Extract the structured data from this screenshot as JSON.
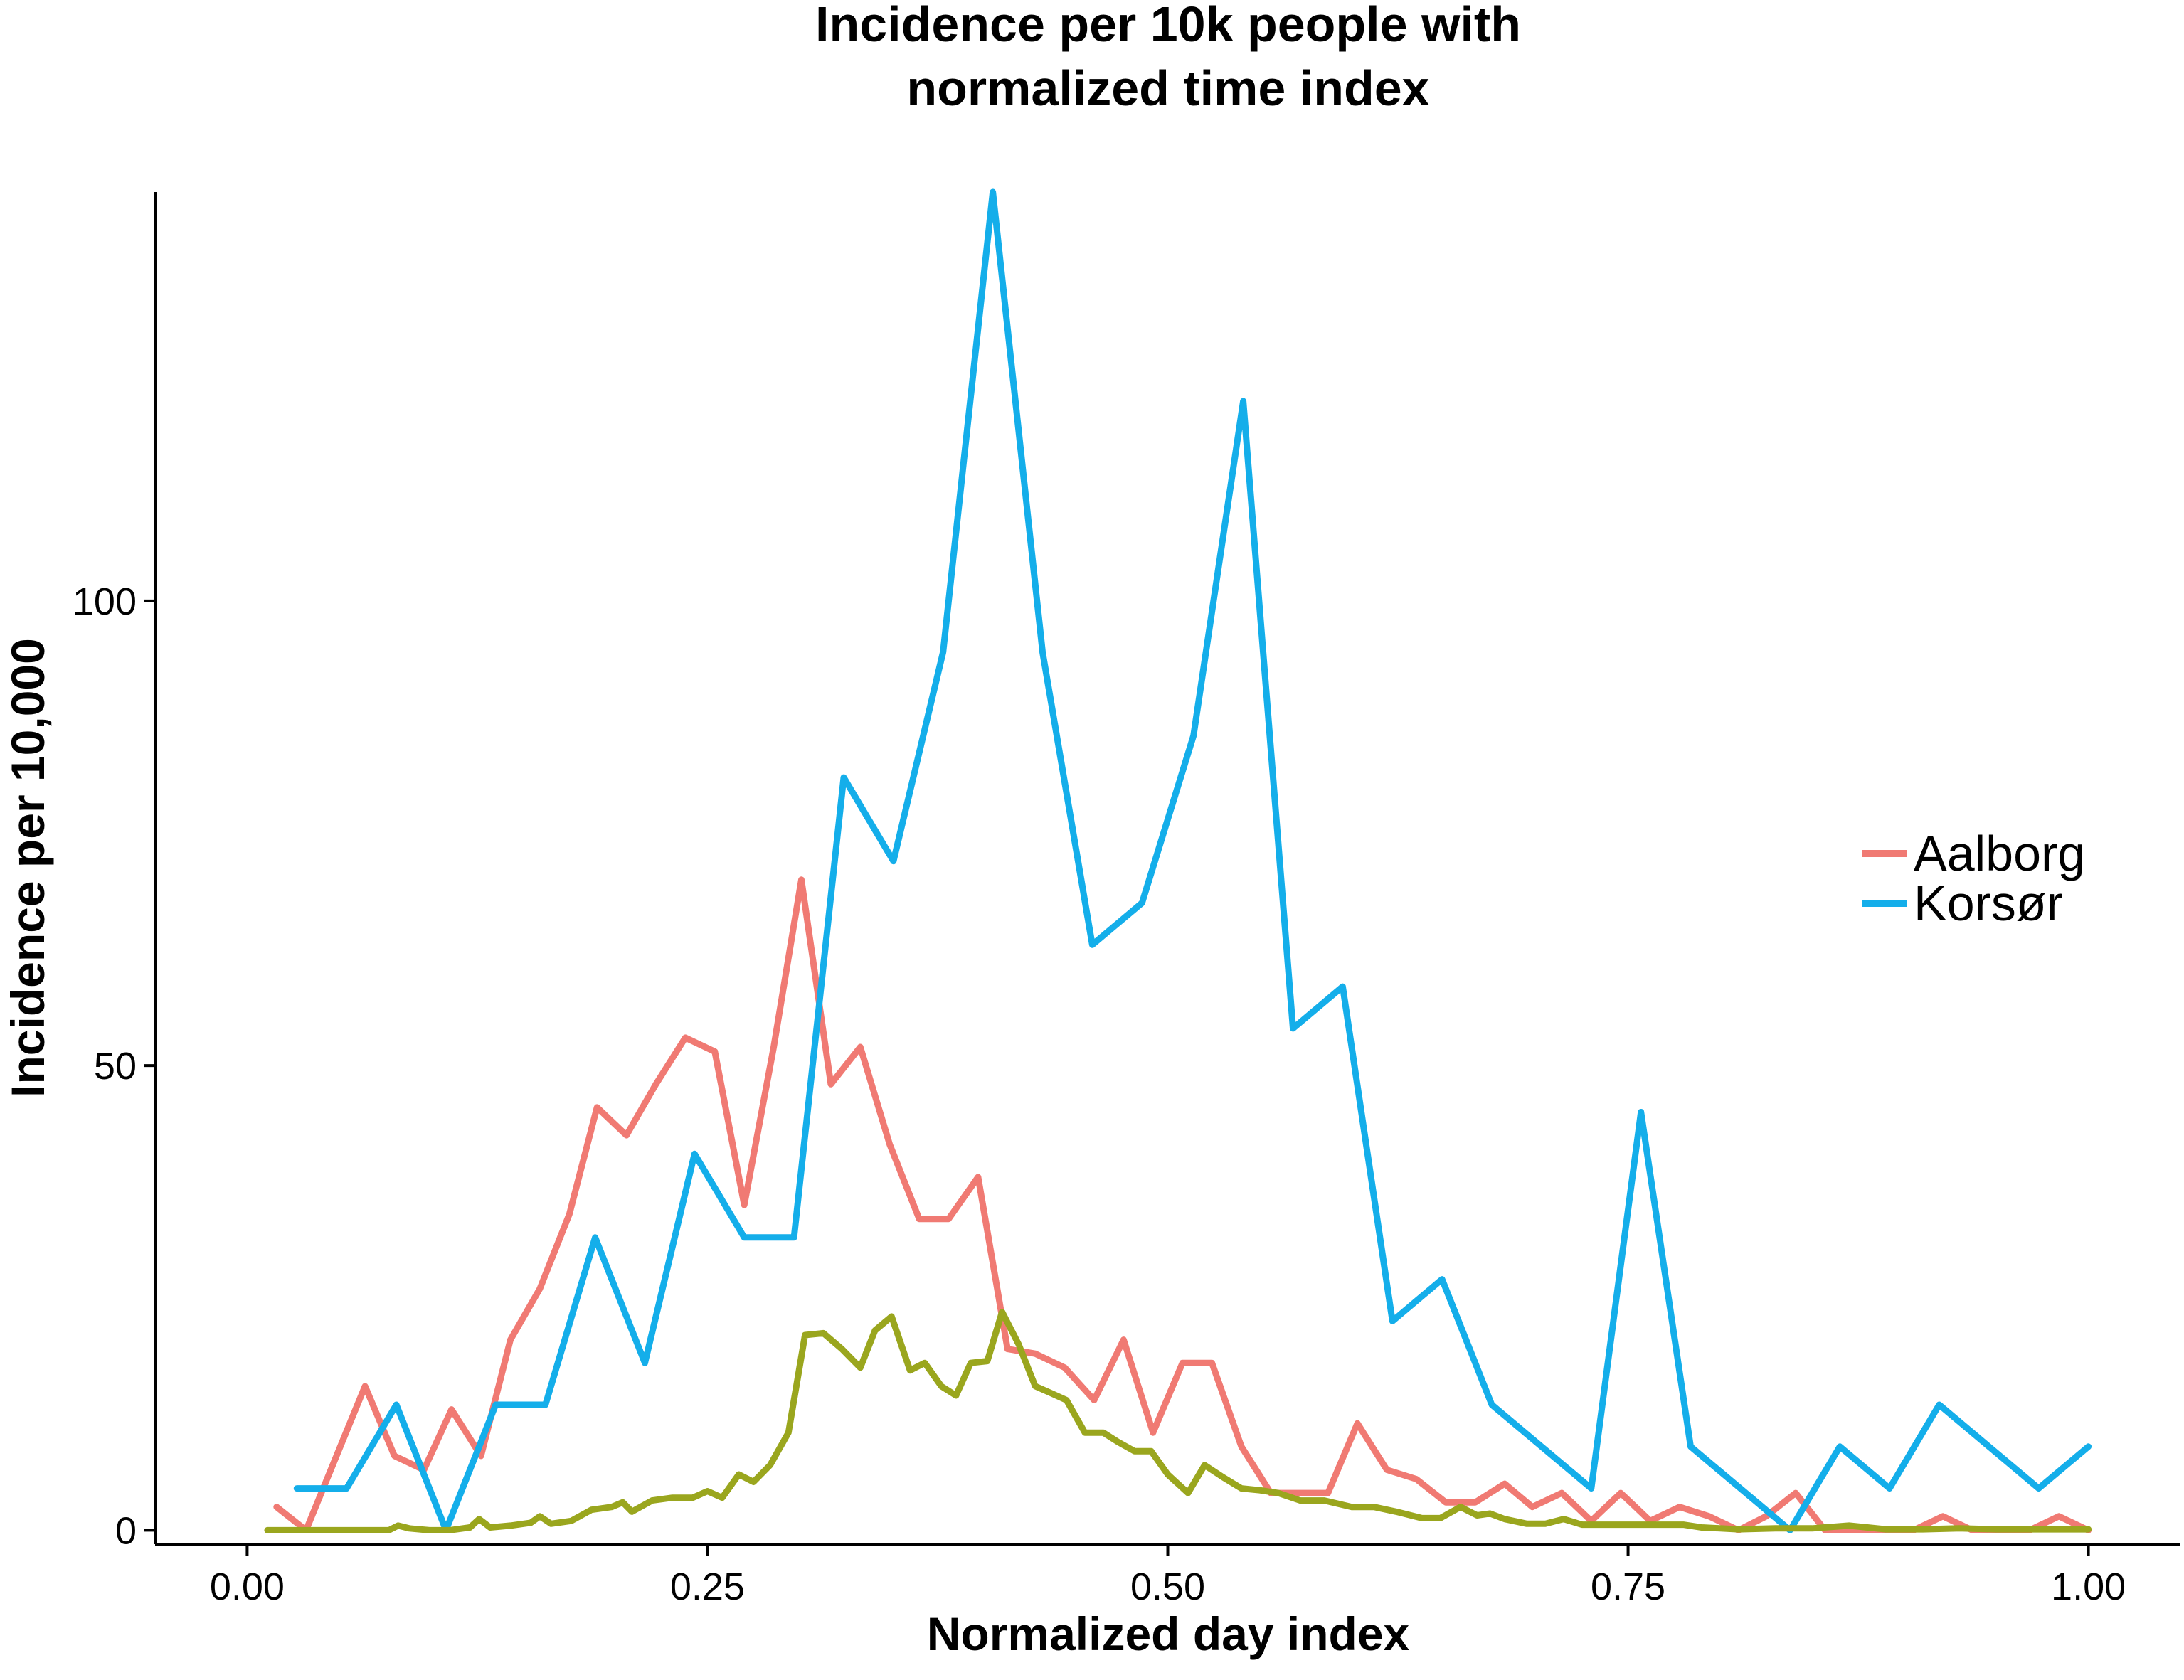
{
  "chart_data": {
    "type": "line",
    "title_lines": [
      "Incidence per 10k people with",
      "normalized time index"
    ],
    "xlabel": "Normalized day index",
    "ylabel": "Incidence per 10,000",
    "xlim": [
      -0.05,
      1.05
    ],
    "ylim": [
      -1.5,
      144
    ],
    "x_ticks": [
      0.0,
      0.25,
      0.5,
      0.75,
      1.0
    ],
    "x_tick_labels": [
      "0.00",
      "0.25",
      "0.50",
      "0.75",
      "1.00"
    ],
    "y_ticks": [
      0,
      50,
      100
    ],
    "y_tick_labels": [
      "0",
      "50",
      "100"
    ],
    "grid": false,
    "legend_position": "right",
    "series": [
      {
        "name": "Aalborg",
        "color": "#F07A73",
        "in_legend": true,
        "points": [
          [
            0.016,
            2.5
          ],
          [
            0.032,
            0
          ],
          [
            0.064,
            15.5
          ],
          [
            0.08,
            8
          ],
          [
            0.096,
            6.5
          ],
          [
            0.111,
            13
          ],
          [
            0.127,
            8
          ],
          [
            0.143,
            20.5
          ],
          [
            0.159,
            26
          ],
          [
            0.175,
            34
          ],
          [
            0.19,
            45.5
          ],
          [
            0.206,
            42.5
          ],
          [
            0.222,
            48
          ],
          [
            0.238,
            53
          ],
          [
            0.254,
            51.5
          ],
          [
            0.27,
            35
          ],
          [
            0.286,
            52
          ],
          [
            0.301,
            70
          ],
          [
            0.317,
            48
          ],
          [
            0.333,
            52
          ],
          [
            0.349,
            41.5
          ],
          [
            0.365,
            33.5
          ],
          [
            0.381,
            33.5
          ],
          [
            0.397,
            38
          ],
          [
            0.413,
            19.5
          ],
          [
            0.428,
            19
          ],
          [
            0.444,
            17.5
          ],
          [
            0.46,
            14
          ],
          [
            0.476,
            20.5
          ],
          [
            0.492,
            10.5
          ],
          [
            0.508,
            18
          ],
          [
            0.524,
            18
          ],
          [
            0.54,
            9
          ],
          [
            0.556,
            4
          ],
          [
            0.571,
            4
          ],
          [
            0.587,
            4
          ],
          [
            0.603,
            11.5
          ],
          [
            0.619,
            6.5
          ],
          [
            0.635,
            5.5
          ],
          [
            0.651,
            3
          ],
          [
            0.667,
            3
          ],
          [
            0.683,
            5
          ],
          [
            0.698,
            2.5
          ],
          [
            0.714,
            4
          ],
          [
            0.73,
            1
          ],
          [
            0.746,
            4
          ],
          [
            0.762,
            1
          ],
          [
            0.778,
            2.5
          ],
          [
            0.794,
            1.5
          ],
          [
            0.81,
            0
          ],
          [
            0.825,
            1.5
          ],
          [
            0.841,
            4
          ],
          [
            0.857,
            0
          ],
          [
            0.873,
            0
          ],
          [
            0.889,
            0
          ],
          [
            0.905,
            0
          ],
          [
            0.921,
            1.5
          ],
          [
            0.937,
            0
          ],
          [
            0.952,
            0
          ],
          [
            0.968,
            0
          ],
          [
            0.984,
            1.5
          ],
          [
            1.0,
            0
          ]
        ]
      },
      {
        "name": "Korsør",
        "color": "#14AEEA",
        "in_legend": true,
        "points": [
          [
            0.027,
            4.5
          ],
          [
            0.054,
            4.5
          ],
          [
            0.081,
            13.5
          ],
          [
            0.108,
            0
          ],
          [
            0.135,
            13.5
          ],
          [
            0.162,
            13.5
          ],
          [
            0.189,
            31.5
          ],
          [
            0.216,
            18
          ],
          [
            0.243,
            40.5
          ],
          [
            0.27,
            31.5
          ],
          [
            0.297,
            31.5
          ],
          [
            0.324,
            81
          ],
          [
            0.351,
            72
          ],
          [
            0.378,
            94.5
          ],
          [
            0.405,
            144
          ],
          [
            0.432,
            94.5
          ],
          [
            0.459,
            63
          ],
          [
            0.486,
            67.5
          ],
          [
            0.514,
            85.5
          ],
          [
            0.541,
            121.5
          ],
          [
            0.568,
            54
          ],
          [
            0.595,
            58.5
          ],
          [
            0.622,
            22.5
          ],
          [
            0.649,
            27
          ],
          [
            0.676,
            13.5
          ],
          [
            0.703,
            9
          ],
          [
            0.73,
            4.5
          ],
          [
            0.757,
            45
          ],
          [
            0.784,
            9
          ],
          [
            0.811,
            4.5
          ],
          [
            0.838,
            0
          ],
          [
            0.865,
            9
          ],
          [
            0.892,
            4.5
          ],
          [
            0.919,
            13.5
          ],
          [
            0.946,
            9
          ],
          [
            0.973,
            4.5
          ],
          [
            1.0,
            9
          ]
        ]
      },
      {
        "name": "",
        "color": "#9AA61E",
        "in_legend": false,
        "points": [
          [
            0.011,
            0
          ],
          [
            0.022,
            0
          ],
          [
            0.033,
            0
          ],
          [
            0.044,
            0
          ],
          [
            0.055,
            0
          ],
          [
            0.066,
            0
          ],
          [
            0.077,
            0
          ],
          [
            0.082,
            0.5
          ],
          [
            0.088,
            0.2
          ],
          [
            0.099,
            0
          ],
          [
            0.11,
            0
          ],
          [
            0.121,
            0.3
          ],
          [
            0.126,
            1.2
          ],
          [
            0.132,
            0.3
          ],
          [
            0.143,
            0.5
          ],
          [
            0.154,
            0.8
          ],
          [
            0.159,
            1.5
          ],
          [
            0.165,
            0.7
          ],
          [
            0.176,
            1
          ],
          [
            0.187,
            2.2
          ],
          [
            0.198,
            2.5
          ],
          [
            0.204,
            3
          ],
          [
            0.209,
            2
          ],
          [
            0.22,
            3.2
          ],
          [
            0.231,
            3.5
          ],
          [
            0.242,
            3.5
          ],
          [
            0.25,
            4.2
          ],
          [
            0.258,
            3.5
          ],
          [
            0.267,
            6
          ],
          [
            0.275,
            5.2
          ],
          [
            0.284,
            7
          ],
          [
            0.294,
            10.5
          ],
          [
            0.303,
            21
          ],
          [
            0.313,
            21.2
          ],
          [
            0.323,
            19.5
          ],
          [
            0.333,
            17.5
          ],
          [
            0.341,
            21.5
          ],
          [
            0.35,
            23
          ],
          [
            0.36,
            17.2
          ],
          [
            0.368,
            18
          ],
          [
            0.377,
            15.5
          ],
          [
            0.385,
            14.5
          ],
          [
            0.393,
            18
          ],
          [
            0.402,
            18.2
          ],
          [
            0.41,
            23.5
          ],
          [
            0.419,
            20
          ],
          [
            0.428,
            15.5
          ],
          [
            0.436,
            14.8
          ],
          [
            0.445,
            14
          ],
          [
            0.455,
            10.5
          ],
          [
            0.465,
            10.5
          ],
          [
            0.473,
            9.5
          ],
          [
            0.482,
            8.5
          ],
          [
            0.491,
            8.5
          ],
          [
            0.5,
            6
          ],
          [
            0.511,
            4
          ],
          [
            0.52,
            7
          ],
          [
            0.53,
            5.7
          ],
          [
            0.54,
            4.5
          ],
          [
            0.55,
            4.3
          ],
          [
            0.56,
            4
          ],
          [
            0.572,
            3.2
          ],
          [
            0.585,
            3.2
          ],
          [
            0.6,
            2.5
          ],
          [
            0.612,
            2.5
          ],
          [
            0.624,
            2
          ],
          [
            0.638,
            1.3
          ],
          [
            0.648,
            1.3
          ],
          [
            0.659,
            2.5
          ],
          [
            0.668,
            1.6
          ],
          [
            0.675,
            1.8
          ],
          [
            0.683,
            1.2
          ],
          [
            0.695,
            0.7
          ],
          [
            0.705,
            0.7
          ],
          [
            0.715,
            1.2
          ],
          [
            0.725,
            0.6
          ],
          [
            0.745,
            0.6
          ],
          [
            0.765,
            0.6
          ],
          [
            0.78,
            0.6
          ],
          [
            0.79,
            0.3
          ],
          [
            0.81,
            0.1
          ],
          [
            0.83,
            0.2
          ],
          [
            0.85,
            0.2
          ],
          [
            0.87,
            0.5
          ],
          [
            0.89,
            0.1
          ],
          [
            0.91,
            0.1
          ],
          [
            0.93,
            0.2
          ],
          [
            0.95,
            0.1
          ],
          [
            0.97,
            0.1
          ],
          [
            0.99,
            0.1
          ],
          [
            1.0,
            0.1
          ]
        ]
      }
    ]
  }
}
